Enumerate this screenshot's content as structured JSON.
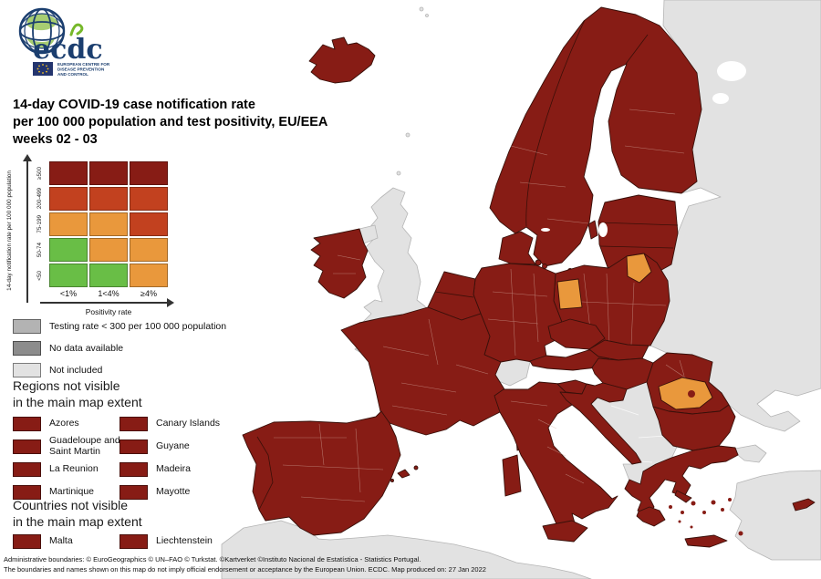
{
  "logo": {
    "acronym": "ecdc",
    "subtitle_lines": [
      "EUROPEAN CENTRE FOR",
      "DISEASE PREVENTION",
      "AND CONTROL"
    ]
  },
  "title": {
    "line1": "14-day COVID-19 case notification rate",
    "line2": "per 100 000 population and test positivity, EU/EEA",
    "line3": "weeks 02 - 03"
  },
  "matrix_legend": {
    "y_axis_label": "14-day notification rate per 100 000 population",
    "x_axis_label": "Positivity rate",
    "row_labels": [
      "≥500",
      "200-499",
      "75-199",
      "50-74",
      "<50"
    ],
    "col_labels": [
      "<1%",
      "1<4%",
      "≥4%"
    ],
    "cell_colors": [
      [
        "dark_red",
        "dark_red",
        "dark_red"
      ],
      [
        "red",
        "red",
        "red"
      ],
      [
        "orange",
        "orange",
        "red"
      ],
      [
        "green",
        "orange",
        "orange"
      ],
      [
        "green",
        "green",
        "orange"
      ]
    ]
  },
  "status_legend": [
    {
      "label": "Testing rate < 300 per 100 000 population",
      "color_key": "gray_testing"
    },
    {
      "label": "No data available",
      "color_key": "gray_no_data"
    },
    {
      "label": "Not included",
      "color_key": "gray_not_included"
    }
  ],
  "regions_not_visible": {
    "heading_line1": "Regions not visible",
    "heading_line2": "in the main map extent",
    "items_left": [
      {
        "label": "Azores",
        "color_key": "dark_red"
      },
      {
        "label": "Guadeloupe and Saint Martin",
        "color_key": "dark_red"
      },
      {
        "label": "La Reunion",
        "color_key": "dark_red"
      },
      {
        "label": "Martinique",
        "color_key": "dark_red"
      }
    ],
    "items_right": [
      {
        "label": "Canary Islands",
        "color_key": "dark_red"
      },
      {
        "label": "Guyane",
        "color_key": "dark_red"
      },
      {
        "label": "Madeira",
        "color_key": "dark_red"
      },
      {
        "label": "Mayotte",
        "color_key": "dark_red"
      }
    ]
  },
  "countries_not_visible": {
    "heading_line1": "Countries not visible",
    "heading_line2": "in the main map extent",
    "items_left": [
      {
        "label": "Malta",
        "color_key": "dark_red"
      }
    ],
    "items_right": [
      {
        "label": "Liechtenstein",
        "color_key": "dark_red"
      }
    ]
  },
  "footer": {
    "line1": "Administrative boundaries: © EuroGeographics © UN–FAO © Turkstat. ©Kartverket ©Instituto Nacional de Estatística - Statistics Portugal.",
    "line2": "The boundaries and names shown on this map do not imply official endorsement or acceptance by the European Union. ECDC. Map produced on: 27 Jan 2022"
  },
  "colors": {
    "dark_red": "#871c15",
    "red": "#c2411f",
    "orange": "#e9983c",
    "green": "#69be46",
    "gray_testing": "#b3b3b3",
    "gray_no_data": "#8c8c8c",
    "gray_not_included": "#e2e2e2",
    "sea": "#ffffff",
    "eu_border": "#38100a",
    "logo_navy": "#1b3e6f",
    "logo_green": "#76b82a"
  }
}
